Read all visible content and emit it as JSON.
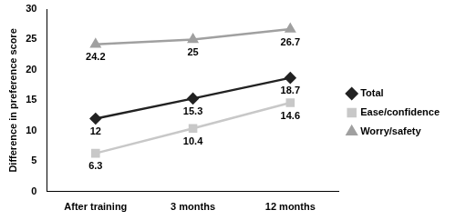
{
  "chart_data": {
    "type": "line",
    "y_label": "Difference in preference score",
    "categories": [
      "After training",
      "3 months",
      "12 months"
    ],
    "series": [
      {
        "name": "Total",
        "color": "#222222",
        "marker": "diamond",
        "values": [
          12,
          15.3,
          18.7
        ]
      },
      {
        "name": "Ease/confidence",
        "color": "#c8c8c8",
        "marker": "square",
        "values": [
          6.3,
          10.4,
          14.6
        ]
      },
      {
        "name": "Worry/safety",
        "color": "#a0a0a0",
        "marker": "triangle",
        "values": [
          24.2,
          25,
          26.7
        ]
      }
    ],
    "ylim": [
      0,
      30
    ],
    "yticks": [
      0,
      5,
      10,
      15,
      20,
      25,
      30
    ],
    "grid": false,
    "legend": "right",
    "data_labels": true
  }
}
